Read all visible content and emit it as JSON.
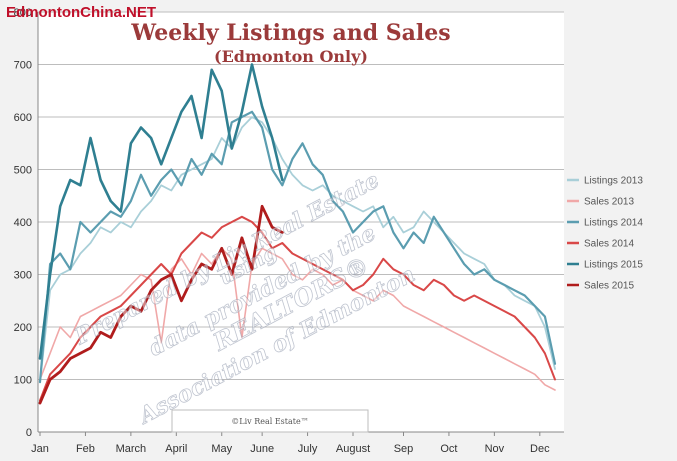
{
  "site_watermark": "EdmontonChina.NET",
  "credit": "©Liv Real Estate™",
  "watermark_lines": [
    "Prepared by Liv Real Estate",
    "using",
    "data provided by the",
    "REALTORS®",
    "Association of Edmonton"
  ],
  "chart_data": {
    "type": "line",
    "title": "Weekly Listings and Sales",
    "subtitle": "(Edmonton Only)",
    "xlabel": "",
    "ylabel": "",
    "ylim": [
      0,
      800
    ],
    "yticks": [
      0,
      100,
      200,
      300,
      400,
      500,
      600,
      700,
      800
    ],
    "x_tick_labels": [
      "Jan",
      "Feb",
      "March",
      "April",
      "May",
      "June",
      "July",
      "August",
      "Sep",
      "Oct",
      "Nov",
      "Dec"
    ],
    "x_tick_weeks": [
      0,
      4.5,
      9,
      13.5,
      18,
      22,
      26.5,
      31,
      36,
      40.5,
      45,
      49.5
    ],
    "grid": true,
    "legend_position": "right",
    "series": [
      {
        "name": "Listings 2013",
        "color": "#a9cfd8",
        "width": 1.8,
        "values": [
          95,
          270,
          300,
          310,
          340,
          360,
          390,
          380,
          400,
          390,
          420,
          440,
          470,
          460,
          490,
          500,
          510,
          520,
          560,
          540,
          580,
          600,
          590,
          560,
          520,
          490,
          470,
          460,
          470,
          450,
          440,
          430,
          420,
          430,
          390,
          410,
          380,
          390,
          420,
          400,
          380,
          360,
          340,
          330,
          320,
          290,
          280,
          260,
          250,
          240,
          200,
          120
        ]
      },
      {
        "name": "Sales 2013",
        "color": "#f0a8a8",
        "width": 1.6,
        "values": [
          100,
          150,
          200,
          180,
          220,
          230,
          240,
          250,
          260,
          280,
          300,
          290,
          170,
          310,
          330,
          300,
          340,
          320,
          350,
          330,
          180,
          320,
          350,
          340,
          330,
          300,
          290,
          310,
          300,
          280,
          290,
          270,
          260,
          250,
          270,
          260,
          240,
          230,
          220,
          210,
          200,
          190,
          180,
          170,
          160,
          150,
          140,
          130,
          120,
          110,
          90,
          80
        ]
      },
      {
        "name": "Listings 2014",
        "color": "#5b9db0",
        "width": 2.2,
        "values": [
          95,
          320,
          340,
          310,
          400,
          380,
          400,
          420,
          410,
          440,
          490,
          450,
          480,
          500,
          470,
          520,
          490,
          530,
          510,
          590,
          600,
          610,
          580,
          500,
          470,
          520,
          550,
          510,
          490,
          440,
          420,
          380,
          400,
          420,
          430,
          380,
          350,
          380,
          360,
          410,
          380,
          350,
          320,
          300,
          310,
          290,
          280,
          270,
          260,
          240,
          220,
          130
        ]
      },
      {
        "name": "Sales 2014",
        "color": "#d94848",
        "width": 2.0,
        "values": [
          60,
          110,
          130,
          150,
          180,
          200,
          220,
          230,
          240,
          260,
          280,
          300,
          320,
          300,
          340,
          360,
          380,
          370,
          390,
          400,
          410,
          400,
          380,
          350,
          360,
          340,
          330,
          320,
          310,
          300,
          290,
          270,
          280,
          300,
          330,
          310,
          300,
          280,
          270,
          290,
          280,
          260,
          250,
          260,
          250,
          240,
          230,
          220,
          200,
          180,
          150,
          100
        ]
      },
      {
        "name": "Listings 2015",
        "color": "#2f7f91",
        "width": 2.6,
        "values": [
          140,
          300,
          430,
          480,
          470,
          560,
          480,
          440,
          420,
          550,
          580,
          560,
          510,
          560,
          610,
          640,
          560,
          690,
          650,
          540,
          610,
          700,
          620,
          560,
          480
        ]
      },
      {
        "name": "Sales 2015",
        "color": "#b01c1c",
        "width": 2.8,
        "values": [
          55,
          100,
          115,
          140,
          150,
          160,
          190,
          180,
          220,
          240,
          230,
          270,
          290,
          300,
          250,
          290,
          320,
          310,
          350,
          300,
          370,
          310,
          430,
          390,
          380
        ]
      }
    ]
  }
}
